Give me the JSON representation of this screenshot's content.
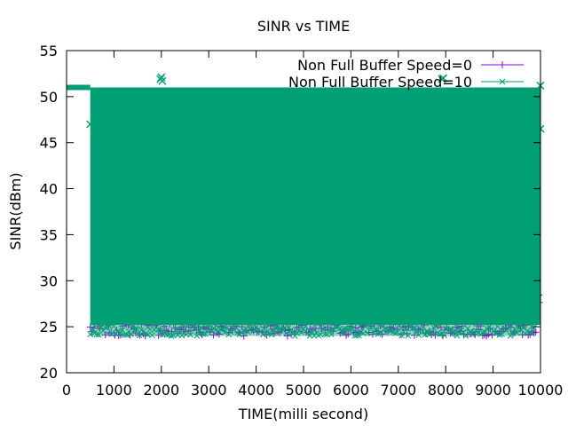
{
  "chart_data": {
    "type": "scatter",
    "title": "SINR vs TIME",
    "xlabel": "TIME(milli second)",
    "ylabel": "SINR(dBm)",
    "xlim": [
      0,
      10000
    ],
    "ylim": [
      20,
      55
    ],
    "x_ticks": [
      0,
      1000,
      2000,
      3000,
      4000,
      5000,
      6000,
      7000,
      8000,
      9000,
      10000
    ],
    "x_tick_labels": [
      "0",
      "1000",
      "2000",
      "3000",
      "4000",
      "5000",
      "6000",
      "7000",
      "8000",
      "9000",
      "10000"
    ],
    "y_ticks": [
      20,
      25,
      30,
      35,
      40,
      45,
      50,
      55
    ],
    "y_tick_labels": [
      "20",
      "25",
      "30",
      "35",
      "40",
      "45",
      "50",
      "55"
    ],
    "legend_position": "top-right",
    "grid": false,
    "series": [
      {
        "name": "Non Full Buffer Speed=0",
        "marker": "plus",
        "color": "#9400d3",
        "description_points": [
          {
            "x": 0,
            "y": 51
          },
          {
            "x": 500,
            "y": 51
          },
          {
            "x": 500,
            "y": 24
          },
          {
            "x": 1000,
            "y": 24
          },
          {
            "x": 2000,
            "y": 24
          },
          {
            "x": 3000,
            "y": 24
          },
          {
            "x": 4000,
            "y": 24
          },
          {
            "x": 5000,
            "y": 24
          },
          {
            "x": 6000,
            "y": 24
          },
          {
            "x": 7000,
            "y": 24
          },
          {
            "x": 8000,
            "y": 24
          },
          {
            "x": 9000,
            "y": 24
          },
          {
            "x": 10000,
            "y": 24
          }
        ]
      },
      {
        "name": "Non Full Buffer Speed=10",
        "marker": "cross",
        "color": "#009e73",
        "description_points": [
          {
            "x": 0,
            "y": 51
          },
          {
            "x": 500,
            "y": 51
          },
          {
            "x": 500,
            "y": 24
          },
          {
            "x": 2000,
            "y": 52
          },
          {
            "x": 8000,
            "y": 52
          },
          {
            "x": 10000,
            "y": 51
          },
          {
            "x": 10000,
            "y": 24
          }
        ]
      }
    ]
  }
}
